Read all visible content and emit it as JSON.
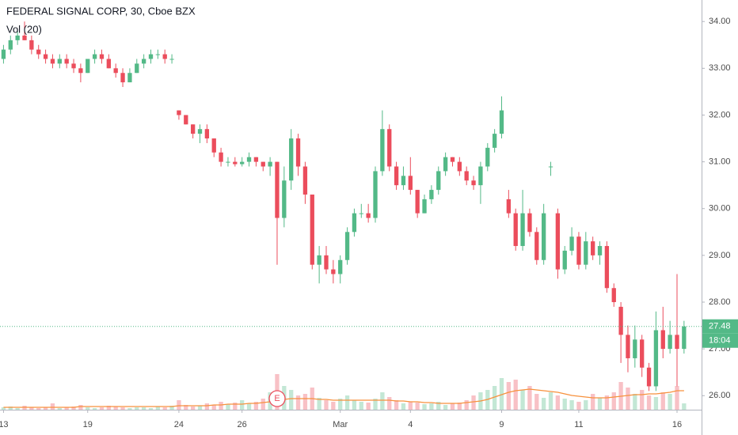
{
  "chart_data": {
    "type": "candlestick",
    "title": "FEDERAL SIGNAL CORP, 30, Cboe BZX",
    "volume_title": "Vol (20)",
    "earnings_marker": "E",
    "last_price": 27.48,
    "last_price_label": "27.48",
    "countdown": "18:04",
    "up_color": "#53b987",
    "down_color": "#eb4d5c",
    "ma_color": "#f7913d",
    "grid": false,
    "ylim": [
      25.7,
      34.46
    ],
    "yticks": [
      {
        "value": 26,
        "label": "26.00"
      },
      {
        "value": 27,
        "label": "27.00"
      },
      {
        "value": 28,
        "label": "28.00"
      },
      {
        "value": 29,
        "label": "29.00"
      },
      {
        "value": 30,
        "label": "30.00"
      },
      {
        "value": 31,
        "label": "31.00"
      },
      {
        "value": 32,
        "label": "32.00"
      },
      {
        "value": 33,
        "label": "33.00"
      },
      {
        "value": 34,
        "label": "34.00"
      }
    ],
    "xlim": [
      -0.5,
      99.5
    ],
    "vlim": [
      0,
      100
    ],
    "categories": [
      "13",
      null,
      null,
      null,
      null,
      null,
      null,
      null,
      null,
      null,
      null,
      null,
      "19",
      null,
      null,
      null,
      null,
      null,
      null,
      null,
      null,
      null,
      null,
      null,
      null,
      "24",
      null,
      null,
      null,
      null,
      null,
      null,
      null,
      null,
      "26",
      null,
      null,
      null,
      null,
      null,
      null,
      null,
      null,
      null,
      null,
      null,
      null,
      null,
      "Mar",
      null,
      null,
      null,
      null,
      null,
      null,
      null,
      null,
      null,
      "4",
      null,
      null,
      null,
      null,
      null,
      null,
      null,
      null,
      null,
      null,
      null,
      null,
      "9",
      null,
      null,
      null,
      null,
      null,
      null,
      null,
      null,
      null,
      null,
      "11",
      null,
      null,
      null,
      null,
      null,
      null,
      null,
      null,
      null,
      null,
      null,
      null,
      null,
      "16",
      null
    ],
    "candles": [
      [
        33.2,
        33.5,
        33.1,
        33.4
      ],
      [
        33.4,
        33.7,
        33.3,
        33.6
      ],
      [
        33.6,
        33.8,
        33.5,
        33.7
      ],
      [
        33.7,
        34.0,
        33.6,
        33.6
      ],
      [
        33.6,
        33.7,
        33.3,
        33.4
      ],
      [
        33.4,
        33.5,
        33.2,
        33.3
      ],
      [
        33.3,
        33.4,
        33.1,
        33.2
      ],
      [
        33.2,
        33.3,
        33.0,
        33.1
      ],
      [
        33.1,
        33.3,
        33.0,
        33.2
      ],
      [
        33.2,
        33.3,
        33.0,
        33.1
      ],
      [
        33.1,
        33.2,
        32.9,
        33.0
      ],
      [
        33.0,
        33.1,
        32.7,
        32.9
      ],
      [
        32.9,
        33.2,
        32.9,
        33.2
      ],
      [
        33.2,
        33.4,
        33.1,
        33.3
      ],
      [
        33.3,
        33.4,
        33.1,
        33.2
      ],
      [
        33.2,
        33.3,
        33.0,
        33.0
      ],
      [
        33.0,
        33.1,
        32.8,
        32.9
      ],
      [
        32.9,
        33.0,
        32.6,
        32.7
      ],
      [
        32.7,
        33.0,
        32.7,
        32.9
      ],
      [
        32.9,
        33.2,
        32.9,
        33.1
      ],
      [
        33.1,
        33.3,
        33.0,
        33.2
      ],
      [
        33.2,
        33.4,
        33.1,
        33.3
      ],
      [
        33.3,
        33.4,
        33.2,
        33.3
      ],
      [
        33.3,
        33.4,
        33.1,
        33.2
      ],
      [
        33.2,
        33.3,
        33.1,
        33.2
      ],
      [
        32.1,
        32.1,
        31.9,
        32.0
      ],
      [
        32.0,
        32.0,
        31.8,
        31.8
      ],
      [
        31.8,
        31.8,
        31.5,
        31.6
      ],
      [
        31.6,
        31.8,
        31.4,
        31.7
      ],
      [
        31.7,
        31.8,
        31.4,
        31.5
      ],
      [
        31.5,
        31.5,
        31.1,
        31.2
      ],
      [
        31.2,
        31.3,
        30.9,
        31.0
      ],
      [
        31.0,
        31.1,
        30.9,
        31.0
      ],
      [
        31.0,
        31.1,
        30.9,
        30.95
      ],
      [
        30.95,
        31.1,
        30.9,
        31.0
      ],
      [
        31.0,
        31.2,
        30.9,
        31.1
      ],
      [
        31.1,
        31.1,
        30.9,
        31.0
      ],
      [
        31.0,
        31.0,
        30.8,
        30.9
      ],
      [
        30.9,
        31.1,
        30.7,
        31.0
      ],
      [
        31.0,
        31.0,
        28.8,
        29.8
      ],
      [
        29.8,
        30.9,
        29.6,
        30.6
      ],
      [
        30.6,
        31.7,
        30.4,
        31.5
      ],
      [
        31.5,
        31.6,
        30.7,
        30.9
      ],
      [
        30.9,
        31.0,
        30.1,
        30.3
      ],
      [
        30.3,
        30.3,
        28.7,
        28.8
      ],
      [
        28.8,
        29.2,
        28.4,
        29.0
      ],
      [
        29.0,
        29.2,
        28.6,
        28.7
      ],
      [
        28.7,
        28.9,
        28.4,
        28.6
      ],
      [
        28.6,
        29.0,
        28.4,
        28.9
      ],
      [
        28.9,
        29.6,
        28.8,
        29.5
      ],
      [
        29.5,
        30.0,
        29.4,
        29.9
      ],
      [
        29.9,
        30.1,
        29.8,
        29.9
      ],
      [
        29.9,
        30.1,
        29.7,
        29.8
      ],
      [
        29.8,
        30.9,
        29.7,
        30.8
      ],
      [
        30.8,
        32.1,
        30.7,
        31.7
      ],
      [
        31.7,
        31.8,
        30.8,
        30.9
      ],
      [
        30.9,
        31.0,
        30.4,
        30.5
      ],
      [
        30.5,
        30.9,
        30.4,
        30.7
      ],
      [
        30.7,
        31.1,
        30.3,
        30.4
      ],
      [
        30.4,
        30.4,
        29.8,
        29.9
      ],
      [
        29.9,
        30.3,
        29.9,
        30.2
      ],
      [
        30.2,
        30.5,
        30.1,
        30.4
      ],
      [
        30.4,
        30.9,
        30.3,
        30.8
      ],
      [
        30.8,
        31.2,
        30.7,
        31.1
      ],
      [
        31.1,
        31.1,
        30.9,
        31.0
      ],
      [
        31.0,
        31.1,
        30.7,
        30.8
      ],
      [
        30.8,
        30.9,
        30.5,
        30.6
      ],
      [
        30.6,
        30.7,
        30.4,
        30.5
      ],
      [
        30.5,
        31.0,
        30.1,
        30.9
      ],
      [
        30.9,
        31.4,
        30.8,
        31.3
      ],
      [
        31.3,
        31.7,
        31.2,
        31.6
      ],
      [
        31.6,
        32.4,
        31.5,
        32.1
      ],
      [
        30.2,
        30.4,
        29.8,
        29.9
      ],
      [
        29.9,
        30.0,
        29.1,
        29.2
      ],
      [
        29.2,
        30.4,
        29.1,
        29.9
      ],
      [
        29.9,
        30.0,
        29.4,
        29.5
      ],
      [
        29.5,
        29.6,
        28.8,
        28.9
      ],
      [
        28.9,
        30.1,
        28.8,
        29.9
      ],
      [
        30.9,
        31.0,
        30.7,
        30.9
      ],
      [
        29.9,
        30.0,
        28.5,
        28.7
      ],
      [
        28.7,
        29.2,
        28.6,
        29.1
      ],
      [
        29.1,
        29.6,
        29.0,
        29.4
      ],
      [
        29.4,
        29.5,
        28.7,
        28.8
      ],
      [
        28.8,
        29.5,
        28.7,
        29.3
      ],
      [
        29.3,
        29.4,
        28.9,
        29.0
      ],
      [
        29.0,
        29.3,
        28.8,
        29.2
      ],
      [
        29.2,
        29.3,
        28.2,
        28.3
      ],
      [
        28.3,
        28.4,
        27.9,
        28.0
      ],
      [
        27.9,
        28.0,
        26.7,
        27.3
      ],
      [
        27.3,
        27.5,
        26.5,
        26.8
      ],
      [
        26.8,
        27.5,
        26.6,
        27.2
      ],
      [
        27.2,
        27.3,
        26.4,
        26.6
      ],
      [
        26.6,
        26.7,
        26.1,
        26.2
      ],
      [
        26.2,
        27.8,
        26.1,
        27.4
      ],
      [
        27.4,
        27.9,
        26.8,
        27.0
      ],
      [
        27.0,
        27.6,
        26.9,
        27.3
      ],
      [
        27.3,
        28.6,
        26.2,
        27.0
      ],
      [
        27.0,
        27.6,
        26.9,
        27.48
      ]
    ],
    "volume": [
      3,
      4,
      2,
      5,
      3,
      2,
      3,
      8,
      2,
      3,
      4,
      6,
      3,
      2,
      3,
      5,
      4,
      3,
      2,
      3,
      3,
      2,
      4,
      3,
      5,
      12,
      6,
      4,
      5,
      8,
      6,
      10,
      7,
      9,
      12,
      8,
      10,
      14,
      22,
      45,
      30,
      25,
      18,
      20,
      28,
      15,
      12,
      10,
      14,
      18,
      12,
      10,
      9,
      14,
      22,
      16,
      12,
      8,
      10,
      9,
      7,
      8,
      10,
      6,
      8,
      9,
      12,
      18,
      22,
      25,
      30,
      40,
      35,
      38,
      25,
      30,
      20,
      15,
      22,
      18,
      14,
      12,
      10,
      12,
      20,
      15,
      18,
      22,
      35,
      28,
      20,
      25,
      18,
      16,
      22,
      20,
      30,
      8
    ],
    "vol_ma": [
      3,
      3,
      3,
      3,
      3,
      3,
      3,
      3,
      3,
      3,
      3,
      4,
      4,
      4,
      4,
      4,
      4,
      4,
      4,
      4,
      4,
      4,
      4,
      4,
      4,
      5,
      5,
      5,
      5,
      5,
      6,
      6,
      7,
      7,
      7,
      8,
      8,
      9,
      10,
      12,
      13,
      14,
      14,
      14,
      14,
      13,
      13,
      12,
      12,
      12,
      12,
      12,
      12,
      12,
      12,
      12,
      11,
      11,
      10,
      10,
      9,
      9,
      8,
      8,
      8,
      8,
      9,
      10,
      11,
      13,
      16,
      19,
      22,
      24,
      25,
      26,
      25,
      24,
      23,
      22,
      20,
      18,
      17,
      16,
      15,
      15,
      15,
      16,
      17,
      18,
      19,
      19,
      20,
      20,
      21,
      22,
      24,
      24
    ]
  }
}
